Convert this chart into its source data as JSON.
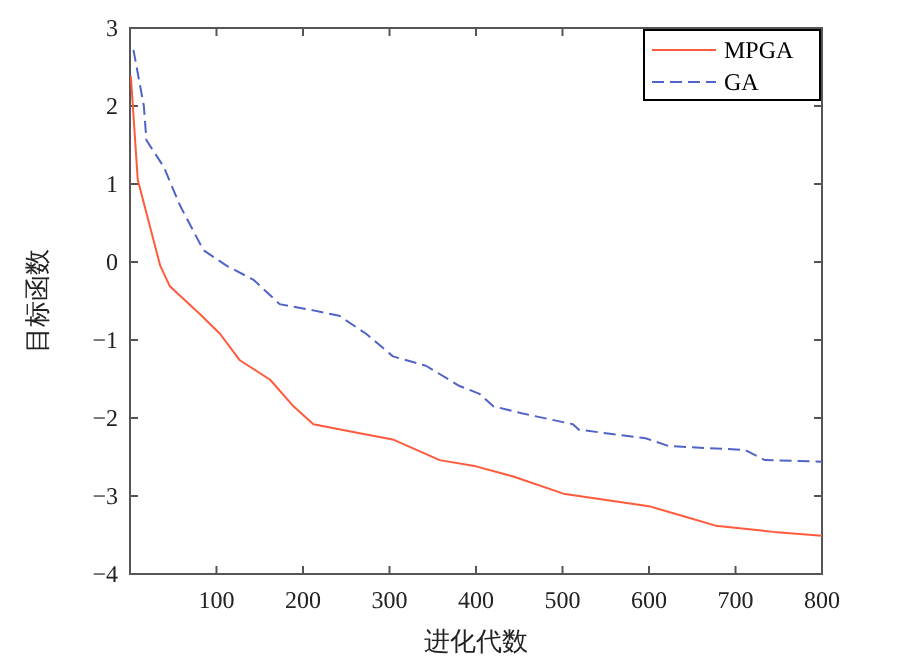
{
  "chart_data": {
    "type": "line",
    "xlabel": "进化代数",
    "ylabel": "目标函数",
    "xlim": [
      0,
      800
    ],
    "ylim": [
      -4,
      3
    ],
    "xticks": [
      100,
      200,
      300,
      400,
      500,
      600,
      700,
      800
    ],
    "yticks": [
      -4,
      -3,
      -2,
      -1,
      0,
      1,
      2,
      3
    ],
    "legend": "top right",
    "grid": false,
    "series": [
      {
        "name": "MPGA",
        "color": "#ff5a3c",
        "line_style": "solid",
        "x": [
          1,
          9,
          35,
          46,
          81,
          104,
          127,
          162,
          189,
          212,
          258,
          305,
          358,
          400,
          443,
          501,
          600,
          640,
          677,
          744,
          800
        ],
        "values": [
          2.38,
          1.05,
          -0.05,
          -0.31,
          -0.67,
          -0.92,
          -1.26,
          -1.51,
          -1.85,
          -2.08,
          -2.18,
          -2.28,
          -2.54,
          -2.62,
          -2.75,
          -2.97,
          -3.13,
          -3.26,
          -3.38,
          -3.46,
          -3.51
        ]
      },
      {
        "name": "GA",
        "color": "#4f63c8",
        "line_style": "dashed",
        "x": [
          4,
          16,
          19,
          39,
          58,
          85,
          112,
          143,
          173,
          212,
          242,
          273,
          304,
          342,
          381,
          404,
          420,
          457,
          512,
          519,
          596,
          623,
          711,
          734,
          800
        ],
        "values": [
          2.72,
          2.0,
          1.56,
          1.22,
          0.72,
          0.15,
          -0.05,
          -0.23,
          -0.54,
          -0.62,
          -0.69,
          -0.92,
          -1.21,
          -1.33,
          -1.59,
          -1.69,
          -1.85,
          -1.95,
          -2.08,
          -2.15,
          -2.26,
          -2.36,
          -2.41,
          -2.54,
          -2.56
        ]
      }
    ]
  }
}
